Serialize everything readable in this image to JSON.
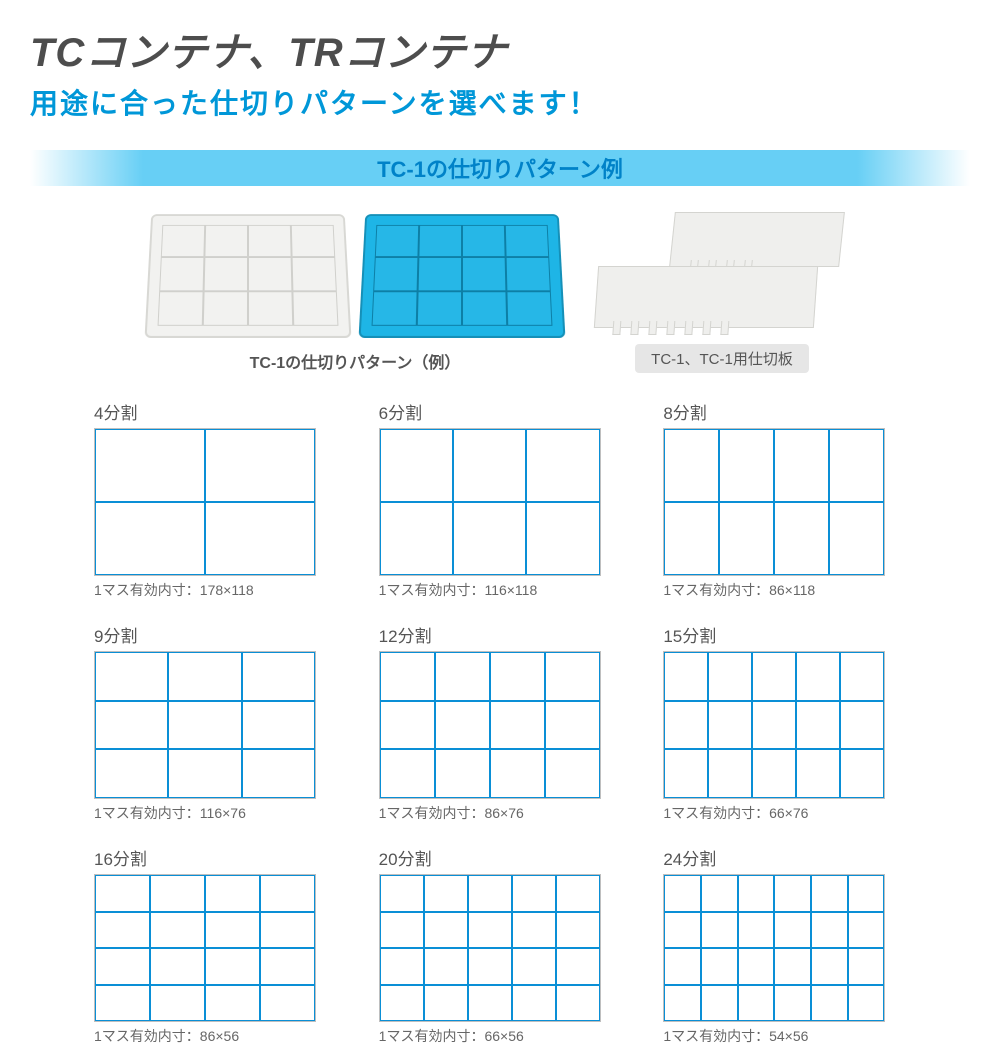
{
  "title": "TCコンテナ、TRコンテナ",
  "subtitle": "用途に合った仕切りパターンを選べます！",
  "banner": "TC-1の仕切りパターン例",
  "product_caption_left": "TC-1の仕切りパターン（例）",
  "product_caption_right": "TC-1、TC-1用仕切板",
  "colors": {
    "title_gray": "#4d4d4d",
    "subtitle_blue": "#0097d8",
    "banner_cyan": "#67cff5",
    "banner_text": "#0082c8",
    "grid_line": "#0a8fd6",
    "box_border": "#bfbfbf",
    "pill_bg": "#e6e6e6",
    "container_blue": "#1eb5e6"
  },
  "patterns": [
    {
      "label": "4分割",
      "cols": 2,
      "rows": 2,
      "dim": "1マス有効内寸：178×118"
    },
    {
      "label": "6分割",
      "cols": 3,
      "rows": 2,
      "dim": "1マス有効内寸：116×118"
    },
    {
      "label": "8分割",
      "cols": 4,
      "rows": 2,
      "dim": "1マス有効内寸：86×118"
    },
    {
      "label": "9分割",
      "cols": 3,
      "rows": 3,
      "dim": "1マス有効内寸：116×76"
    },
    {
      "label": "12分割",
      "cols": 4,
      "rows": 3,
      "dim": "1マス有効内寸：86×76"
    },
    {
      "label": "15分割",
      "cols": 5,
      "rows": 3,
      "dim": "1マス有効内寸：66×76"
    },
    {
      "label": "16分割",
      "cols": 4,
      "rows": 4,
      "dim": "1マス有効内寸：86×56"
    },
    {
      "label": "20分割",
      "cols": 5,
      "rows": 4,
      "dim": "1マス有効内寸：66×56"
    },
    {
      "label": "24分割",
      "cols": 6,
      "rows": 4,
      "dim": "1マス有効内寸：54×56"
    }
  ]
}
